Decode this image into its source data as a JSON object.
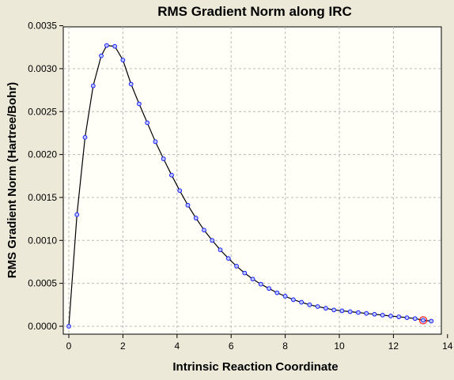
{
  "colors": {
    "window_bg": "#ece9d8",
    "plot_bg": "#fffff8",
    "grid": "#b8b8b8",
    "line": "#000000",
    "marker_stroke": "#1a1aff",
    "marker_fill": "#b8c8ff",
    "highlight_marker": "#ff2020"
  },
  "chart_data": {
    "type": "line",
    "title": "RMS Gradient Norm along IRC",
    "xlabel": "Intrinsic Reaction Coordinate",
    "ylabel": "RMS Gradient Norm (Hartree/Bohr)",
    "xlim": [
      0,
      14
    ],
    "ylim": [
      0,
      0.0035
    ],
    "xticks": [
      "0",
      "2",
      "4",
      "6",
      "8",
      "10",
      "12",
      "14"
    ],
    "yticks": [
      "0.0000",
      "0.0005",
      "0.0010",
      "0.0015",
      "0.0020",
      "0.0025",
      "0.0030",
      "0.0035"
    ],
    "grid": true,
    "legend": "none",
    "highlighted_point_index": 44,
    "series": [
      {
        "x": [
          0.0,
          0.3,
          0.6,
          0.9,
          1.2,
          1.4,
          1.7,
          2.0,
          2.3,
          2.6,
          2.9,
          3.2,
          3.5,
          3.8,
          4.1,
          4.4,
          4.7,
          5.0,
          5.3,
          5.6,
          5.9,
          6.2,
          6.5,
          6.8,
          7.1,
          7.4,
          7.7,
          8.0,
          8.3,
          8.6,
          8.9,
          9.2,
          9.5,
          9.8,
          10.1,
          10.4,
          10.7,
          11.0,
          11.3,
          11.6,
          11.9,
          12.2,
          12.5,
          12.8,
          13.1,
          13.4
        ],
        "values": [
          0.0,
          0.0013,
          0.0022,
          0.0028,
          0.00315,
          0.00327,
          0.00326,
          0.0031,
          0.00282,
          0.00259,
          0.00237,
          0.00215,
          0.00195,
          0.00176,
          0.00158,
          0.00141,
          0.00126,
          0.00112,
          0.001,
          0.00089,
          0.00079,
          0.0007,
          0.00062,
          0.00055,
          0.00049,
          0.00044,
          0.00039,
          0.00035,
          0.00031,
          0.00028,
          0.00025,
          0.00023,
          0.00021,
          0.00019,
          0.00018,
          0.00017,
          0.00016,
          0.00015,
          0.00014,
          0.00013,
          0.00012,
          0.00011,
          0.0001,
          9e-05,
          7e-05,
          6e-05
        ]
      }
    ]
  }
}
